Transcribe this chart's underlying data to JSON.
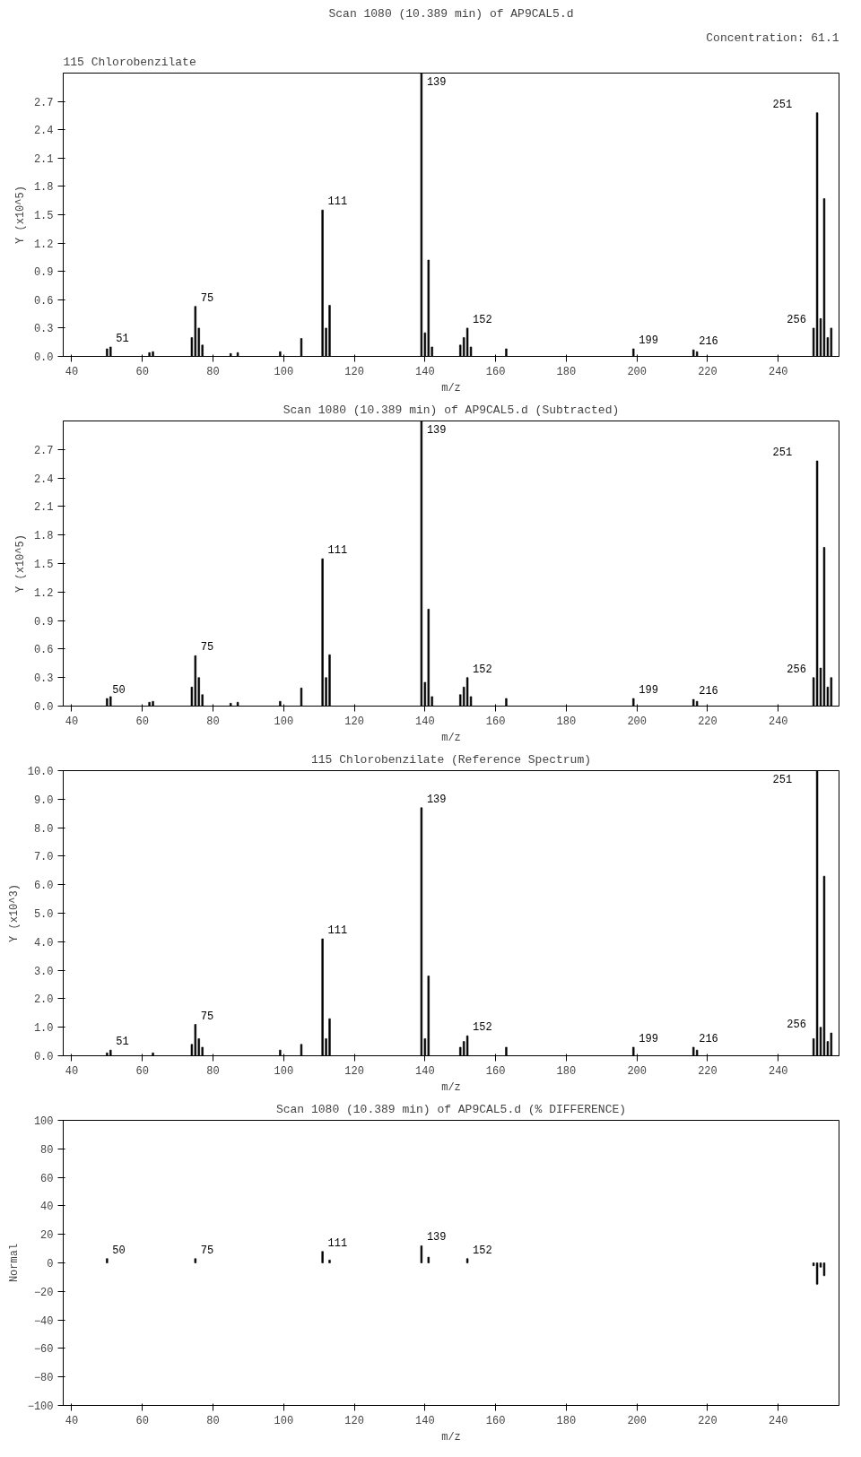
{
  "chart_data": [
    {
      "type": "bar",
      "title": "Scan 1080 (10.389 min) of AP9CAL5.d",
      "xlabel": "m/z",
      "ylabel": "Y (x10^5)",
      "x": [
        50,
        51,
        62,
        63,
        74,
        75,
        76,
        77,
        85,
        87,
        99,
        105,
        111,
        112,
        113,
        139,
        140,
        141,
        142,
        150,
        151,
        152,
        153,
        163,
        199,
        216,
        217,
        250,
        251,
        252,
        253,
        254,
        255
      ],
      "values": [
        0.08,
        0.1,
        0.04,
        0.05,
        0.2,
        0.53,
        0.3,
        0.12,
        0.03,
        0.04,
        0.05,
        0.19,
        1.55,
        0.3,
        0.54,
        3.0,
        0.25,
        1.02,
        0.1,
        0.12,
        0.2,
        0.3,
        0.1,
        0.08,
        0.08,
        0.07,
        0.05,
        0.3,
        2.58,
        0.4,
        1.67,
        0.2,
        0.3
      ],
      "color": "#000000",
      "xlim": [
        37.6,
        257.2
      ],
      "ylim": [
        0,
        3.0
      ],
      "xticks": [
        40,
        60,
        80,
        100,
        120,
        140,
        160,
        180,
        200,
        220,
        240
      ],
      "yticks": [
        {
          "value": 0,
          "label": "0.0"
        },
        {
          "value": 0.3,
          "label": "0.3"
        },
        {
          "value": 0.6,
          "label": "0.6"
        },
        {
          "value": 0.9,
          "label": "0.9"
        },
        {
          "value": 1.2,
          "label": "1.2"
        },
        {
          "value": 1.5,
          "label": "1.5"
        },
        {
          "value": 1.8,
          "label": "1.8"
        },
        {
          "value": 2.1,
          "label": "2.1"
        },
        {
          "value": 2.4,
          "label": "2.4"
        },
        {
          "value": 2.7,
          "label": "2.7"
        }
      ],
      "annotations": [
        "115 Chlorobenzilate",
        "Concentration: 61.1",
        {
          "text": "51",
          "x": 51,
          "y": 0.1
        },
        {
          "text": "75",
          "x": 75,
          "y": 0.53
        },
        {
          "text": "111",
          "x": 111,
          "y": 1.55
        },
        {
          "text": "139",
          "x": 139,
          "y": 3.0
        },
        {
          "text": "152",
          "x": 152,
          "y": 0.3
        },
        {
          "text": "199",
          "x": 199,
          "y": 0.08
        },
        {
          "text": "216",
          "x": 216,
          "y": 0.07
        },
        {
          "text": "251",
          "x": 251,
          "y": 2.58
        },
        {
          "text": "256",
          "x": 255,
          "y": 0.3
        }
      ]
    },
    {
      "type": "bar",
      "title": "Scan 1080 (10.389 min) of AP9CAL5.d (Subtracted)",
      "xlabel": "m/z",
      "ylabel": "Y (x10^5)",
      "x": [
        50,
        51,
        62,
        63,
        74,
        75,
        76,
        77,
        85,
        87,
        99,
        105,
        111,
        112,
        113,
        139,
        140,
        141,
        142,
        150,
        151,
        152,
        153,
        163,
        199,
        216,
        217,
        250,
        251,
        252,
        253,
        254,
        255
      ],
      "values": [
        0.08,
        0.1,
        0.04,
        0.05,
        0.2,
        0.53,
        0.3,
        0.12,
        0.03,
        0.04,
        0.05,
        0.19,
        1.55,
        0.3,
        0.54,
        3.0,
        0.25,
        1.02,
        0.1,
        0.12,
        0.2,
        0.3,
        0.1,
        0.08,
        0.08,
        0.07,
        0.05,
        0.3,
        2.58,
        0.4,
        1.67,
        0.2,
        0.3
      ],
      "color": "#000000",
      "xlim": [
        37.6,
        257.2
      ],
      "ylim": [
        0,
        3.0
      ],
      "xticks": [
        40,
        60,
        80,
        100,
        120,
        140,
        160,
        180,
        200,
        220,
        240
      ],
      "yticks": [
        {
          "value": 0,
          "label": "0.0"
        },
        {
          "value": 0.3,
          "label": "0.3"
        },
        {
          "value": 0.6,
          "label": "0.6"
        },
        {
          "value": 0.9,
          "label": "0.9"
        },
        {
          "value": 1.2,
          "label": "1.2"
        },
        {
          "value": 1.5,
          "label": "1.5"
        },
        {
          "value": 1.8,
          "label": "1.8"
        },
        {
          "value": 2.1,
          "label": "2.1"
        },
        {
          "value": 2.4,
          "label": "2.4"
        },
        {
          "value": 2.7,
          "label": "2.7"
        }
      ],
      "annotations": [
        {
          "text": "50",
          "x": 50,
          "y": 0.08
        },
        {
          "text": "75",
          "x": 75,
          "y": 0.53
        },
        {
          "text": "111",
          "x": 111,
          "y": 1.55
        },
        {
          "text": "139",
          "x": 139,
          "y": 3.0
        },
        {
          "text": "152",
          "x": 152,
          "y": 0.3
        },
        {
          "text": "199",
          "x": 199,
          "y": 0.08
        },
        {
          "text": "216",
          "x": 216,
          "y": 0.07
        },
        {
          "text": "251",
          "x": 251,
          "y": 2.58
        },
        {
          "text": "256",
          "x": 255,
          "y": 0.3
        }
      ]
    },
    {
      "type": "bar",
      "title": "115 Chlorobenzilate (Reference Spectrum)",
      "xlabel": "m/z",
      "ylabel": "Y (x10^3)",
      "x": [
        50,
        51,
        63,
        74,
        75,
        76,
        77,
        99,
        105,
        111,
        112,
        113,
        139,
        140,
        141,
        150,
        151,
        152,
        163,
        199,
        216,
        217,
        250,
        251,
        252,
        253,
        254,
        255
      ],
      "values": [
        0.1,
        0.2,
        0.1,
        0.4,
        1.1,
        0.6,
        0.3,
        0.2,
        0.4,
        4.1,
        0.6,
        1.3,
        8.7,
        0.6,
        2.8,
        0.3,
        0.5,
        0.7,
        0.3,
        0.3,
        0.3,
        0.2,
        0.6,
        10.0,
        1.0,
        6.3,
        0.5,
        0.8
      ],
      "color": "#000000",
      "xlim": [
        37.6,
        257.2
      ],
      "ylim": [
        0,
        10.0
      ],
      "xticks": [
        40,
        60,
        80,
        100,
        120,
        140,
        160,
        180,
        200,
        220,
        240
      ],
      "yticks": [
        {
          "value": 0,
          "label": "0.0"
        },
        {
          "value": 1,
          "label": "1.0"
        },
        {
          "value": 2,
          "label": "2.0"
        },
        {
          "value": 3,
          "label": "3.0"
        },
        {
          "value": 4,
          "label": "4.0"
        },
        {
          "value": 5,
          "label": "5.0"
        },
        {
          "value": 6,
          "label": "6.0"
        },
        {
          "value": 7,
          "label": "7.0"
        },
        {
          "value": 8,
          "label": "8.0"
        },
        {
          "value": 9,
          "label": "9.0"
        },
        {
          "value": 10,
          "label": "10.0"
        }
      ],
      "annotations": [
        {
          "text": "51",
          "x": 51,
          "y": 0.2
        },
        {
          "text": "75",
          "x": 75,
          "y": 1.1
        },
        {
          "text": "111",
          "x": 111,
          "y": 4.1
        },
        {
          "text": "139",
          "x": 139,
          "y": 8.7
        },
        {
          "text": "152",
          "x": 152,
          "y": 0.7
        },
        {
          "text": "199",
          "x": 199,
          "y": 0.3
        },
        {
          "text": "216",
          "x": 216,
          "y": 0.3
        },
        {
          "text": "251",
          "x": 251,
          "y": 10.0
        },
        {
          "text": "256",
          "x": 255,
          "y": 0.8
        }
      ]
    },
    {
      "type": "bar",
      "title": "Scan 1080 (10.389 min) of AP9CAL5.d (% DIFFERENCE)",
      "xlabel": "m/z",
      "ylabel": "Normal",
      "x": [
        50,
        75,
        111,
        113,
        139,
        141,
        152,
        250,
        251,
        252,
        253
      ],
      "values": [
        3,
        3,
        8,
        2,
        12,
        4,
        3,
        -2,
        -15,
        -3,
        -9
      ],
      "color": "#000000",
      "xlim": [
        37.6,
        257.2
      ],
      "ylim": [
        -100,
        100
      ],
      "xticks": [
        40,
        60,
        80,
        100,
        120,
        140,
        160,
        180,
        200,
        220,
        240
      ],
      "yticks": [
        -100,
        -80,
        -60,
        -40,
        -20,
        0,
        20,
        40,
        60,
        80,
        100
      ],
      "annotations": [
        {
          "text": "50",
          "x": 50,
          "y": 3
        },
        {
          "text": "75",
          "x": 75,
          "y": 3
        },
        {
          "text": "111",
          "x": 111,
          "y": 8
        },
        {
          "text": "139",
          "x": 139,
          "y": 12
        },
        {
          "text": "152",
          "x": 152,
          "y": 3
        }
      ]
    }
  ]
}
